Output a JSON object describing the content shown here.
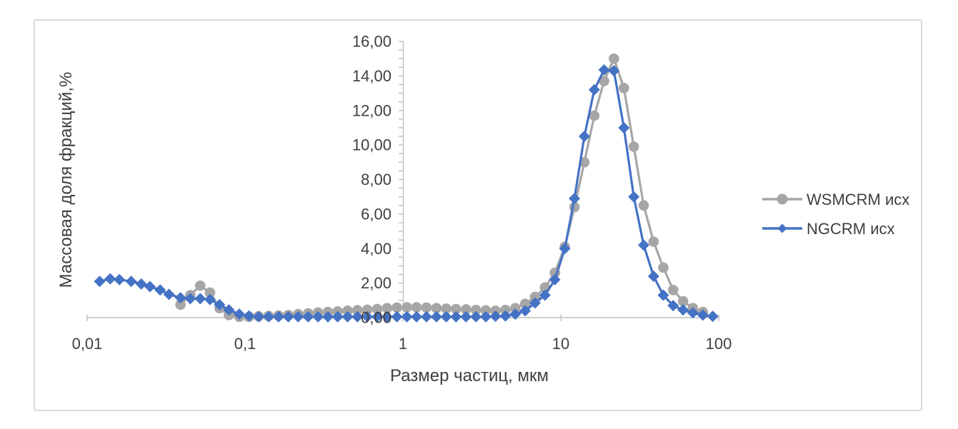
{
  "chart_data": {
    "type": "line",
    "title": "",
    "xlabel": "Размер частиц, мкм",
    "ylabel": "Массовая доля фракций,%",
    "x_scale": "log",
    "xlim": [
      0.01,
      100
    ],
    "ylim": [
      0,
      16
    ],
    "grid": false,
    "legend_position": "right",
    "x_tick_labels": [
      "0,01",
      "0,1",
      "1",
      "10",
      "100"
    ],
    "x_tick_values": [
      0.01,
      0.1,
      1,
      10,
      100
    ],
    "y_tick_labels": [
      "0,00",
      "2,00",
      "4,00",
      "6,00",
      "8,00",
      "10,00",
      "12,00",
      "14,00",
      "16,00"
    ],
    "y_tick_values": [
      0,
      2,
      4,
      6,
      8,
      10,
      12,
      14,
      16
    ],
    "y_minor_tick_step": 0.5,
    "series": [
      {
        "name": "WSMCRM исх",
        "color": "#A6A6A6",
        "marker": "circle",
        "x": [
          0.039,
          0.045,
          0.052,
          0.06,
          0.069,
          0.079,
          0.092,
          0.106,
          0.122,
          0.141,
          0.163,
          0.188,
          0.217,
          0.251,
          0.29,
          0.335,
          0.386,
          0.446,
          0.515,
          0.595,
          0.687,
          0.794,
          0.916,
          1.06,
          1.22,
          1.41,
          1.63,
          1.88,
          2.17,
          2.51,
          2.9,
          3.35,
          3.86,
          4.46,
          5.15,
          5.95,
          6.87,
          7.94,
          9.17,
          10.6,
          12.2,
          14.1,
          16.3,
          18.8,
          21.7,
          25.1,
          29.0,
          33.5,
          38.7,
          44.6,
          51.5,
          59.5,
          68.7,
          79.4
        ],
        "y": [
          0.75,
          1.3,
          1.85,
          1.45,
          0.55,
          0.15,
          0.05,
          0.05,
          0.08,
          0.1,
          0.12,
          0.15,
          0.2,
          0.25,
          0.3,
          0.33,
          0.36,
          0.4,
          0.43,
          0.46,
          0.5,
          0.55,
          0.58,
          0.6,
          0.6,
          0.58,
          0.55,
          0.52,
          0.5,
          0.48,
          0.45,
          0.42,
          0.4,
          0.45,
          0.55,
          0.8,
          1.2,
          1.75,
          2.6,
          4.1,
          6.4,
          9.0,
          11.7,
          13.7,
          15.0,
          13.3,
          9.9,
          6.5,
          4.4,
          2.9,
          1.6,
          0.95,
          0.55,
          0.33
        ]
      },
      {
        "name": "NGCRM исх",
        "color": "#4472C4",
        "marker": "diamond",
        "x": [
          0.012,
          0.014,
          0.016,
          0.019,
          0.022,
          0.025,
          0.029,
          0.033,
          0.039,
          0.045,
          0.052,
          0.06,
          0.069,
          0.079,
          0.092,
          0.106,
          0.122,
          0.141,
          0.163,
          0.188,
          0.217,
          0.251,
          0.29,
          0.335,
          0.386,
          0.446,
          0.515,
          0.595,
          0.687,
          0.794,
          0.916,
          1.06,
          1.22,
          1.41,
          1.63,
          1.88,
          2.17,
          2.51,
          2.9,
          3.35,
          3.86,
          4.46,
          5.15,
          5.95,
          6.87,
          7.94,
          9.17,
          10.6,
          12.2,
          14.1,
          16.3,
          18.8,
          21.7,
          25.1,
          29.0,
          33.5,
          38.7,
          44.6,
          51.5,
          59.5,
          68.7,
          79.4,
          91.7
        ],
        "y": [
          2.1,
          2.25,
          2.2,
          2.1,
          1.95,
          1.8,
          1.6,
          1.35,
          1.15,
          1.1,
          1.1,
          1.05,
          0.75,
          0.45,
          0.2,
          0.1,
          0.05,
          0.05,
          0.05,
          0.05,
          0.05,
          0.05,
          0.05,
          0.05,
          0.05,
          0.05,
          0.05,
          0.05,
          0.05,
          0.05,
          0.05,
          0.05,
          0.05,
          0.05,
          0.05,
          0.05,
          0.05,
          0.05,
          0.05,
          0.05,
          0.08,
          0.1,
          0.2,
          0.4,
          0.85,
          1.3,
          2.2,
          4.0,
          6.9,
          10.5,
          13.2,
          14.35,
          14.3,
          11.0,
          7.0,
          4.2,
          2.4,
          1.3,
          0.7,
          0.45,
          0.28,
          0.15,
          0.08
        ]
      }
    ]
  },
  "colors": {
    "axis": "#BFBFBF",
    "text": "#3F3F3F",
    "border": "#D9D9D9",
    "background": "#FFFFFF"
  }
}
